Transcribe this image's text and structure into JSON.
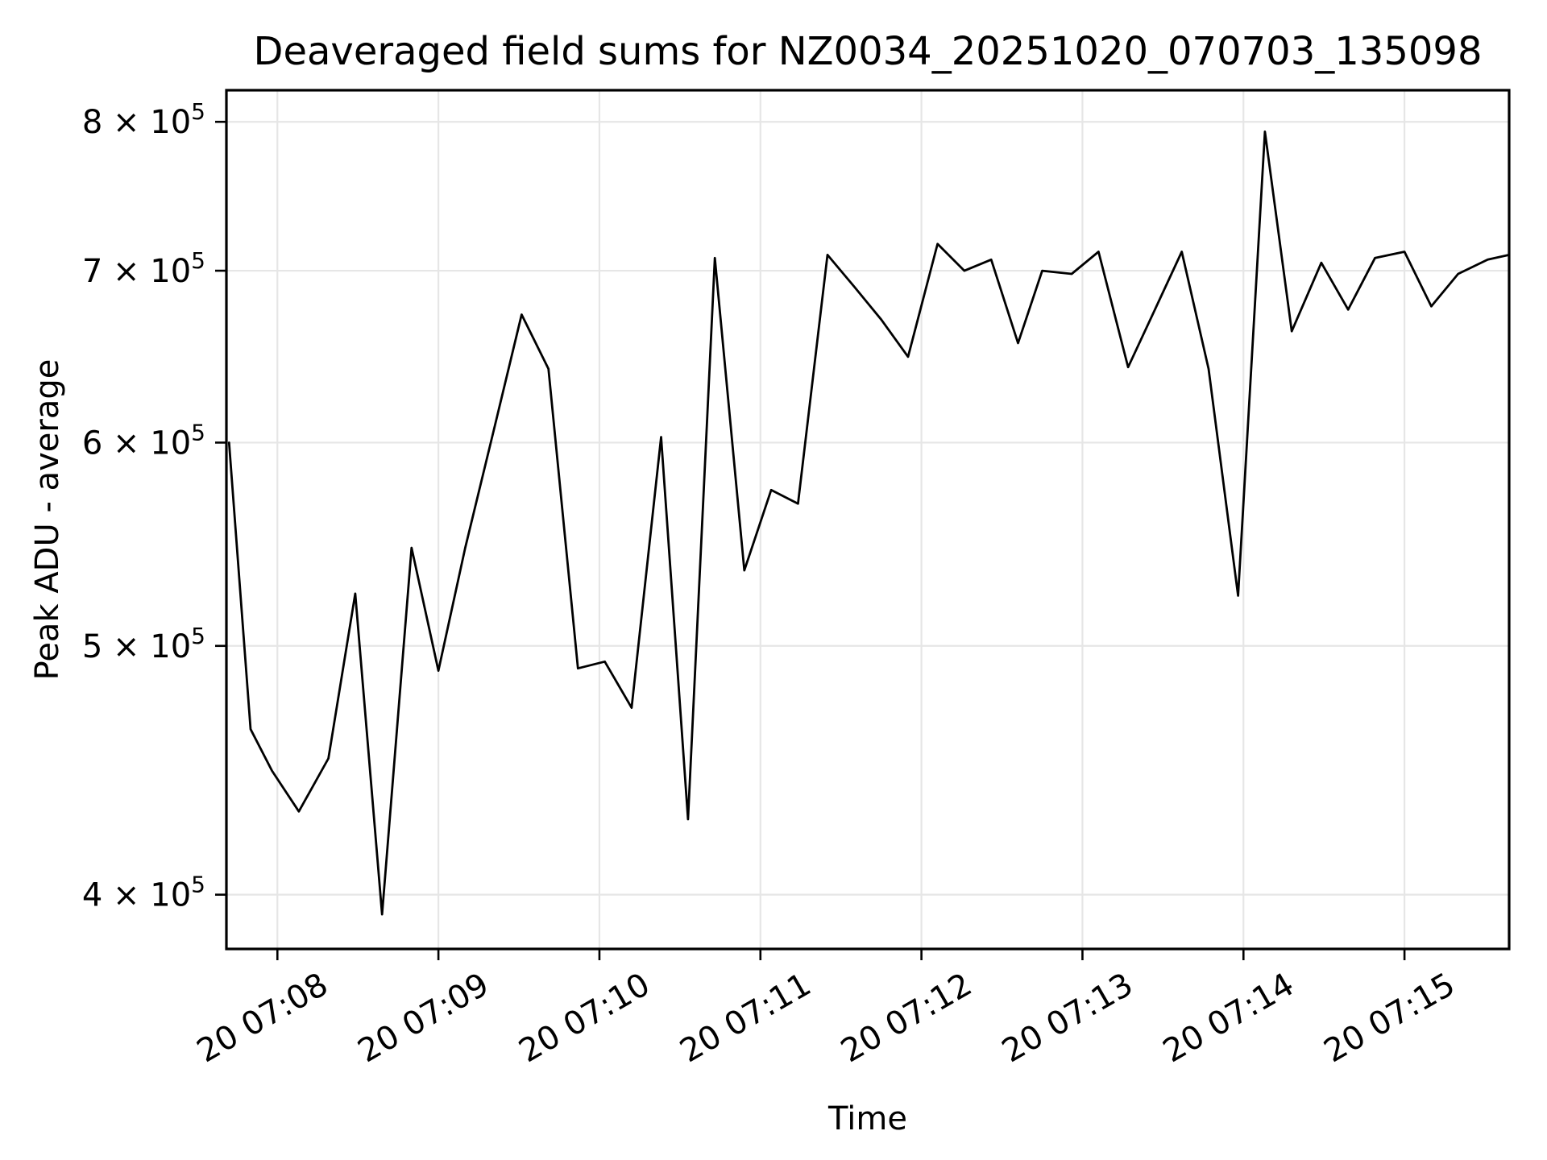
{
  "figure": {
    "background": "#ffffff"
  },
  "chart_data": {
    "type": "line",
    "title": "Deaveraged field sums for NZ0034_20251020_070703_135098",
    "xlabel": "Time",
    "ylabel": "Peak ADU - average",
    "yscale": "log",
    "grid": true,
    "legend": "none",
    "line_color": "#000000",
    "grid_color": "#e6e6e6",
    "spine_color": "#000000",
    "xlim": [
      "07:07:41",
      "07:15:39"
    ],
    "ylim": [
      381000,
      823000
    ],
    "x_ticks": [
      {
        "label": "20 07:08",
        "time": "07:08:00"
      },
      {
        "label": "20 07:09",
        "time": "07:09:00"
      },
      {
        "label": "20 07:10",
        "time": "07:10:00"
      },
      {
        "label": "20 07:11",
        "time": "07:11:00"
      },
      {
        "label": "20 07:12",
        "time": "07:12:00"
      },
      {
        "label": "20 07:13",
        "time": "07:13:00"
      },
      {
        "label": "20 07:14",
        "time": "07:14:00"
      },
      {
        "label": "20 07:15",
        "time": "07:15:00"
      }
    ],
    "y_ticks": [
      {
        "label": "4 × 10⁵",
        "base": "4 × 10",
        "exp": "5",
        "value": 400000
      },
      {
        "label": "5 × 10⁵",
        "base": "5 × 10",
        "exp": "5",
        "value": 500000
      },
      {
        "label": "6 × 10⁵",
        "base": "6 × 10",
        "exp": "5",
        "value": 600000
      },
      {
        "label": "7 × 10⁵",
        "base": "7 × 10",
        "exp": "5",
        "value": 700000
      },
      {
        "label": "8 × 10⁵",
        "base": "8 × 10",
        "exp": "5",
        "value": 800000
      }
    ],
    "series": [
      {
        "name": "Peak ADU - average (deaveraged field sums)",
        "points": [
          [
            "07:07:42",
            600000
          ],
          [
            "07:07:50",
            464000
          ],
          [
            "07:07:58",
            447000
          ],
          [
            "07:08:08",
            431000
          ],
          [
            "07:08:19",
            452000
          ],
          [
            "07:08:29",
            524000
          ],
          [
            "07:08:39",
            393000
          ],
          [
            "07:08:50",
            546000
          ],
          [
            "07:09:00",
            489000
          ],
          [
            "07:09:10",
            546000
          ],
          [
            "07:09:21",
            609000
          ],
          [
            "07:09:31",
            673000
          ],
          [
            "07:09:41",
            641000
          ],
          [
            "07:09:52",
            490000
          ],
          [
            "07:10:02",
            493000
          ],
          [
            "07:10:12",
            473000
          ],
          [
            "07:10:23",
            603000
          ],
          [
            "07:10:33",
            428000
          ],
          [
            "07:10:43",
            708000
          ],
          [
            "07:10:54",
            535000
          ],
          [
            "07:11:04",
            575000
          ],
          [
            "07:11:14",
            568000
          ],
          [
            "07:11:25",
            710000
          ],
          [
            "07:11:35",
            690000
          ],
          [
            "07:11:45",
            670000
          ],
          [
            "07:11:55",
            648000
          ],
          [
            "07:12:06",
            717000
          ],
          [
            "07:12:16",
            700000
          ],
          [
            "07:12:26",
            707000
          ],
          [
            "07:12:36",
            656000
          ],
          [
            "07:12:45",
            700000
          ],
          [
            "07:12:56",
            698000
          ],
          [
            "07:13:06",
            712000
          ],
          [
            "07:13:17",
            642000
          ],
          [
            "07:13:27",
            676000
          ],
          [
            "07:13:37",
            712000
          ],
          [
            "07:13:47",
            641000
          ],
          [
            "07:13:58",
            523000
          ],
          [
            "07:14:08",
            793000
          ],
          [
            "07:14:18",
            663000
          ],
          [
            "07:14:29",
            705000
          ],
          [
            "07:14:39",
            676000
          ],
          [
            "07:14:49",
            708000
          ],
          [
            "07:15:00",
            712000
          ],
          [
            "07:15:10",
            678000
          ],
          [
            "07:15:20",
            698000
          ],
          [
            "07:15:31",
            707000
          ],
          [
            "07:15:39",
            710000
          ]
        ]
      }
    ]
  }
}
